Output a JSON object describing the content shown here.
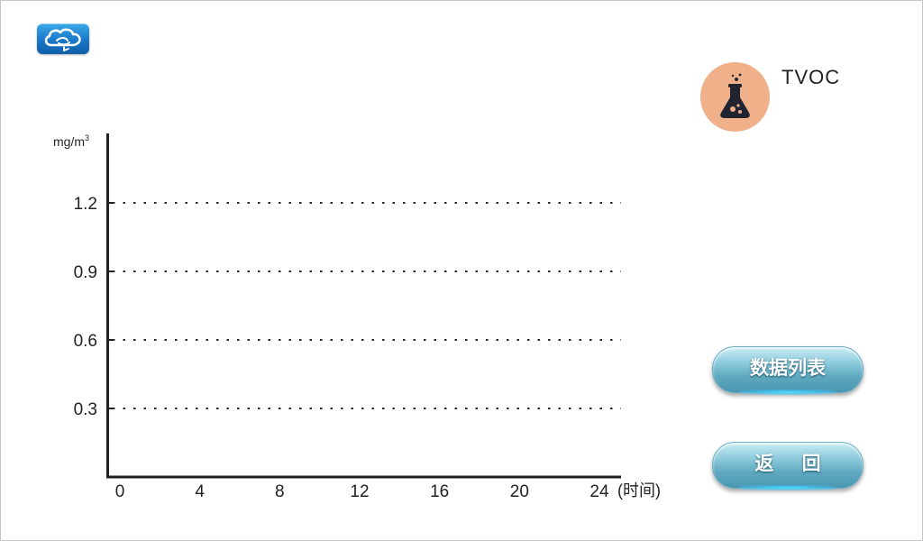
{
  "header": {
    "logo_icon": "cloud-logo-icon"
  },
  "sensor": {
    "name": "TVOC",
    "icon": "flask-icon",
    "icon_color": "#efb08a"
  },
  "buttons": {
    "data_list_label": "数据列表",
    "back_label": "返 回"
  },
  "chart_data": {
    "type": "line",
    "ylabel": "mg/m",
    "ylabel_superscript": "3",
    "xlabel": "(时间)",
    "x_ticks": [
      "0",
      "4",
      "8",
      "12",
      "16",
      "20",
      "24"
    ],
    "y_ticks": [
      "0.3",
      "0.6",
      "0.9",
      "1.2"
    ],
    "xlim": [
      0,
      24
    ],
    "ylim": [
      0,
      1.5
    ],
    "grid": "dashed-horizontal",
    "series": []
  }
}
